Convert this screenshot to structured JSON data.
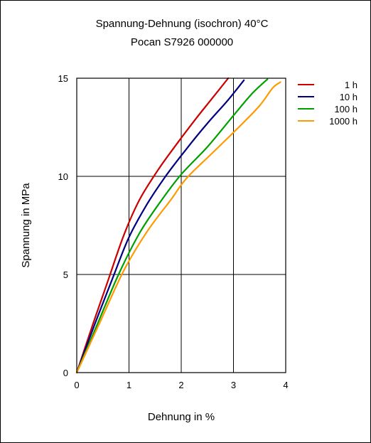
{
  "chart_data": {
    "type": "line",
    "title": "Spannung-Dehnung (isochron) 40°C",
    "subtitle": "Pocan S7926 000000",
    "xlabel": "Dehnung in %",
    "ylabel": "Spannung in MPa",
    "xlim": [
      0,
      4
    ],
    "ylim": [
      0,
      15
    ],
    "xticks": [
      "0",
      "1",
      "2",
      "3",
      "4"
    ],
    "yticks": [
      "0",
      "5",
      "10",
      "15"
    ],
    "grid": true,
    "legend_position": "right",
    "series": [
      {
        "name": "1 h",
        "color": "#cc0000",
        "points": [
          [
            0,
            0
          ],
          [
            0.3,
            2.4
          ],
          [
            0.6,
            4.7
          ],
          [
            0.9,
            7.0
          ],
          [
            1.2,
            8.8
          ],
          [
            1.55,
            10.3
          ],
          [
            1.9,
            11.6
          ],
          [
            2.3,
            13.0
          ],
          [
            2.6,
            14.0
          ],
          [
            2.9,
            15.0
          ]
        ]
      },
      {
        "name": "10 h",
        "color": "#000080",
        "points": [
          [
            0,
            0
          ],
          [
            0.35,
            2.5
          ],
          [
            0.7,
            4.9
          ],
          [
            1.0,
            6.9
          ],
          [
            1.35,
            8.6
          ],
          [
            1.7,
            10.0
          ],
          [
            2.1,
            11.4
          ],
          [
            2.5,
            12.7
          ],
          [
            2.9,
            13.9
          ],
          [
            3.2,
            14.9
          ]
        ]
      },
      {
        "name": "100 h",
        "color": "#00a000",
        "points": [
          [
            0,
            0
          ],
          [
            0.4,
            2.5
          ],
          [
            0.8,
            5.0
          ],
          [
            1.2,
            7.1
          ],
          [
            1.6,
            8.7
          ],
          [
            2.0,
            10.1
          ],
          [
            2.5,
            11.5
          ],
          [
            3.0,
            13.1
          ],
          [
            3.35,
            14.2
          ],
          [
            3.65,
            14.95
          ]
        ]
      },
      {
        "name": "1000 h",
        "color": "#ff9900",
        "points": [
          [
            0,
            0
          ],
          [
            0.45,
            2.6
          ],
          [
            0.9,
            5.2
          ],
          [
            1.35,
            7.2
          ],
          [
            1.8,
            8.8
          ],
          [
            2.1,
            9.9
          ],
          [
            2.6,
            11.2
          ],
          [
            3.1,
            12.5
          ],
          [
            3.5,
            13.6
          ],
          [
            3.75,
            14.5
          ],
          [
            3.9,
            14.8
          ]
        ]
      }
    ]
  }
}
